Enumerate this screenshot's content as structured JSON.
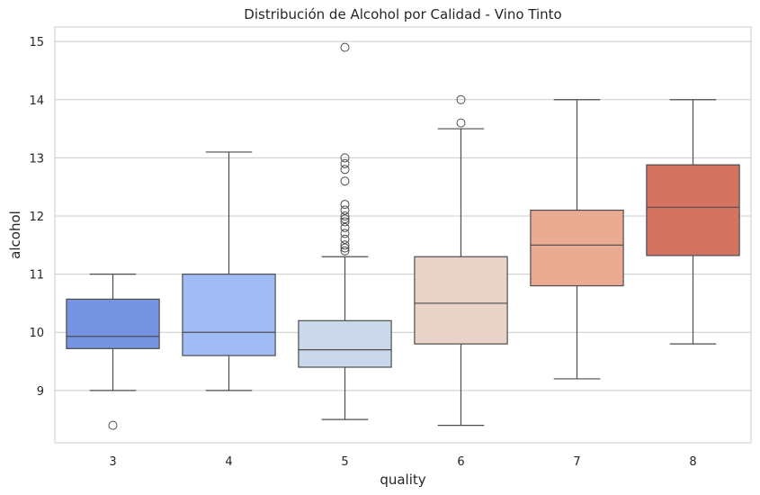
{
  "chart_data": {
    "type": "box",
    "title": "Distribución de Alcohol por Calidad - Vino Tinto",
    "xlabel": "quality",
    "ylabel": "alcohol",
    "categories": [
      "3",
      "4",
      "5",
      "6",
      "7",
      "8"
    ],
    "yticks": [
      "9",
      "10",
      "11",
      "12",
      "13",
      "14",
      "15"
    ],
    "ylim": [
      8.1,
      15.25
    ],
    "grid": true,
    "colors": [
      "#7593e0",
      "#a1bcf5",
      "#cbd8ec",
      "#ead3c8",
      "#ebab93",
      "#d4735f"
    ],
    "boxes": [
      {
        "category": "3",
        "whisker_low": 9.0,
        "q1": 9.72,
        "median": 9.93,
        "q3": 10.57,
        "whisker_high": 11.0,
        "outliers": [
          8.4
        ]
      },
      {
        "category": "4",
        "whisker_low": 9.0,
        "q1": 9.6,
        "median": 10.0,
        "q3": 11.0,
        "whisker_high": 13.1,
        "outliers": []
      },
      {
        "category": "5",
        "whisker_low": 8.5,
        "q1": 9.4,
        "median": 9.7,
        "q3": 10.2,
        "whisker_high": 11.3,
        "outliers": [
          11.4,
          11.45,
          11.5,
          11.6,
          11.7,
          11.8,
          11.9,
          11.95,
          12.0,
          12.1,
          12.2,
          12.6,
          12.8,
          12.9,
          13.0,
          14.9
        ]
      },
      {
        "category": "6",
        "whisker_low": 8.4,
        "q1": 9.8,
        "median": 10.5,
        "q3": 11.3,
        "whisker_high": 13.5,
        "outliers": [
          13.6,
          14.0
        ]
      },
      {
        "category": "7",
        "whisker_low": 9.2,
        "q1": 10.8,
        "median": 11.5,
        "q3": 12.1,
        "whisker_high": 14.0,
        "outliers": []
      },
      {
        "category": "8",
        "whisker_low": 9.8,
        "q1": 11.32,
        "median": 12.15,
        "q3": 12.88,
        "whisker_high": 14.0,
        "outliers": []
      }
    ]
  }
}
